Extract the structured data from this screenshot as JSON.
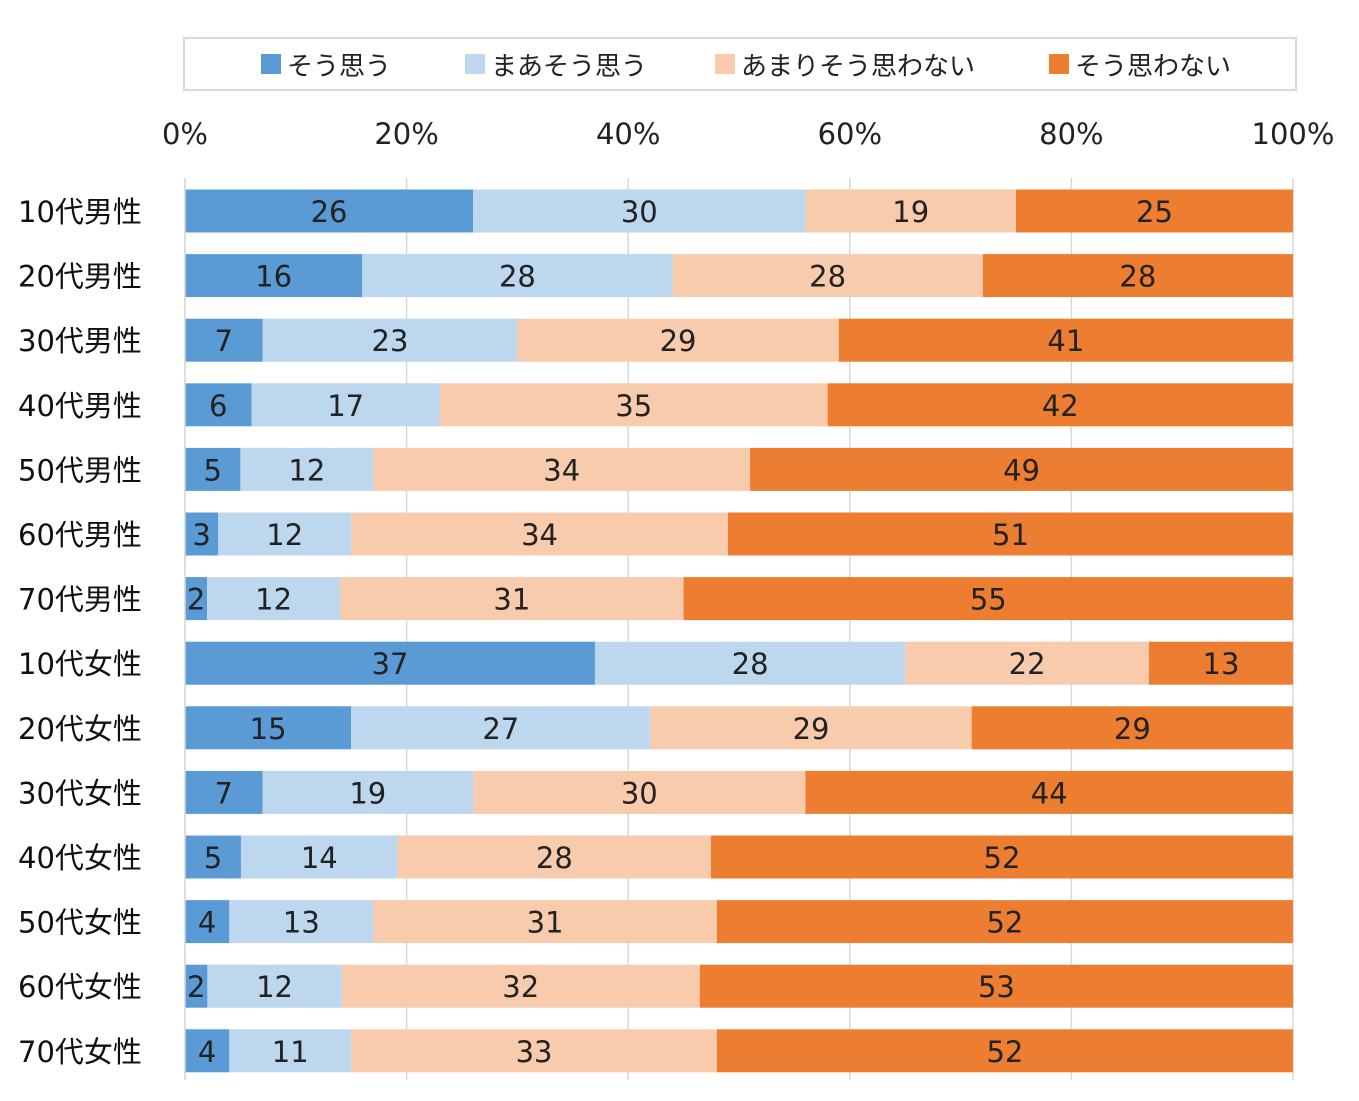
{
  "chart_data": {
    "type": "bar",
    "orientation": "horizontal",
    "stacked": "percent",
    "categories": [
      "10代男性",
      "20代男性",
      "30代男性",
      "40代男性",
      "50代男性",
      "60代男性",
      "70代男性",
      "10代女性",
      "20代女性",
      "30代女性",
      "40代女性",
      "50代女性",
      "60代女性",
      "70代女性"
    ],
    "series": [
      {
        "name": "そう思う",
        "color": "#5b9bd5",
        "values": [
          26,
          16,
          7,
          6,
          5,
          3,
          2,
          37,
          15,
          7,
          5,
          4,
          2,
          4
        ]
      },
      {
        "name": "まあそう思う",
        "color": "#bdd7ee",
        "values": [
          30,
          28,
          23,
          17,
          12,
          12,
          12,
          28,
          27,
          19,
          14,
          13,
          12,
          11
        ]
      },
      {
        "name": "あまりそう思わない",
        "color": "#f8cbad",
        "values": [
          19,
          28,
          29,
          35,
          34,
          34,
          31,
          22,
          29,
          30,
          28,
          31,
          32,
          33
        ]
      },
      {
        "name": "そう思わない",
        "color": "#ed7d31",
        "values": [
          25,
          28,
          41,
          42,
          49,
          51,
          55,
          13,
          29,
          44,
          52,
          52,
          53,
          52
        ]
      }
    ],
    "x_ticks": [
      "0%",
      "20%",
      "40%",
      "60%",
      "80%",
      "100%"
    ],
    "xlim": [
      0,
      100
    ],
    "grid": "vertical",
    "legend_position": "top",
    "title": "",
    "xlabel": "",
    "ylabel": ""
  }
}
